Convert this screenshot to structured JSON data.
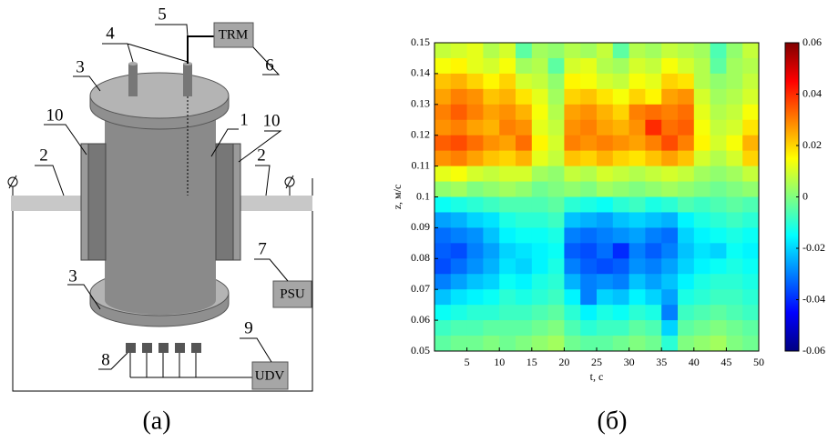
{
  "diagram": {
    "caption": "(a)",
    "numbers": [
      "1",
      "2",
      "3",
      "4",
      "5",
      "6",
      "7",
      "8",
      "9",
      "10"
    ],
    "boxes": [
      "TRM",
      "PSU",
      "UDV"
    ]
  },
  "chart_data": {
    "type": "heatmap",
    "caption": "(б)",
    "xlabel": "t, c",
    "ylabel": "z, м/с",
    "x": [
      1.25,
      3.75,
      6.25,
      8.75,
      11.25,
      13.75,
      16.25,
      18.75,
      21.25,
      23.75,
      26.25,
      28.75,
      31.25,
      33.75,
      36.25,
      38.75,
      41.25,
      43.75,
      46.25,
      48.75
    ],
    "y": [
      0.1475,
      0.1425,
      0.1375,
      0.1325,
      0.1275,
      0.1225,
      0.1175,
      0.1125,
      0.1075,
      0.1025,
      0.0975,
      0.0925,
      0.0875,
      0.0825,
      0.0775,
      0.0725,
      0.0675,
      0.0625,
      0.0575,
      0.0525
    ],
    "z": [
      [
        0.008,
        0.01,
        0.012,
        0.006,
        0.01,
        -0.004,
        0.004,
        0.002,
        0.006,
        0.004,
        0.008,
        -0.004,
        0.006,
        0.004,
        0.008,
        0.006,
        0.004,
        -0.006,
        0.002,
        0.008
      ],
      [
        0.014,
        0.016,
        0.012,
        0.01,
        0.014,
        0.004,
        0.006,
        -0.004,
        0.01,
        0.012,
        0.006,
        0.004,
        0.01,
        0.008,
        0.014,
        0.01,
        0.006,
        -0.004,
        0.004,
        0.006
      ],
      [
        0.022,
        0.024,
        0.02,
        0.016,
        0.02,
        0.01,
        0.008,
        0.002,
        0.016,
        0.014,
        0.01,
        0.008,
        0.014,
        0.012,
        0.02,
        0.018,
        0.006,
        0.002,
        0.004,
        0.008
      ],
      [
        0.026,
        0.03,
        0.028,
        0.022,
        0.024,
        0.018,
        0.012,
        0.004,
        0.02,
        0.022,
        0.018,
        0.014,
        0.02,
        0.016,
        0.026,
        0.028,
        0.01,
        0.004,
        0.006,
        0.01
      ],
      [
        0.03,
        0.034,
        0.03,
        0.026,
        0.028,
        0.024,
        0.014,
        0.006,
        0.026,
        0.028,
        0.024,
        0.02,
        0.03,
        0.032,
        0.03,
        0.032,
        0.012,
        0.006,
        0.008,
        0.014
      ],
      [
        0.028,
        0.03,
        0.026,
        0.024,
        0.03,
        0.028,
        0.012,
        0.008,
        0.028,
        0.03,
        0.026,
        0.024,
        0.028,
        0.04,
        0.032,
        0.034,
        0.014,
        0.008,
        0.01,
        0.018
      ],
      [
        0.034,
        0.036,
        0.032,
        0.028,
        0.026,
        0.032,
        0.016,
        0.01,
        0.03,
        0.028,
        0.03,
        0.028,
        0.026,
        0.03,
        0.036,
        0.03,
        0.016,
        0.01,
        0.014,
        0.024
      ],
      [
        0.028,
        0.03,
        0.026,
        0.022,
        0.02,
        0.024,
        0.012,
        0.008,
        0.022,
        0.02,
        0.024,
        0.02,
        0.018,
        0.022,
        0.026,
        0.022,
        0.01,
        0.006,
        0.01,
        0.02
      ],
      [
        0.012,
        0.014,
        0.01,
        0.008,
        0.01,
        0.01,
        0.004,
        0.002,
        0.008,
        0.006,
        0.01,
        0.008,
        0.006,
        0.008,
        0.01,
        0.008,
        0.004,
        0.002,
        0.004,
        0.008
      ],
      [
        0.002,
        0.004,
        0,
        0.002,
        0.004,
        0.002,
        -0.002,
        0,
        0.002,
        0,
        0.004,
        0.002,
        0,
        0.002,
        0.004,
        0.002,
        0,
        -0.002,
        0,
        0.002
      ],
      [
        -0.014,
        -0.012,
        -0.01,
        -0.008,
        -0.006,
        -0.006,
        -0.006,
        -0.004,
        -0.01,
        -0.012,
        -0.014,
        -0.01,
        -0.008,
        -0.012,
        -0.01,
        -0.006,
        -0.008,
        -0.006,
        -0.004,
        -0.006
      ],
      [
        -0.026,
        -0.024,
        -0.02,
        -0.018,
        -0.012,
        -0.01,
        -0.01,
        -0.008,
        -0.022,
        -0.024,
        -0.026,
        -0.022,
        -0.02,
        -0.022,
        -0.024,
        -0.016,
        -0.012,
        -0.01,
        -0.008,
        -0.01
      ],
      [
        -0.032,
        -0.03,
        -0.028,
        -0.022,
        -0.016,
        -0.014,
        -0.014,
        -0.012,
        -0.03,
        -0.032,
        -0.03,
        -0.028,
        -0.026,
        -0.03,
        -0.032,
        -0.02,
        -0.016,
        -0.014,
        -0.012,
        -0.014
      ],
      [
        -0.034,
        -0.036,
        -0.03,
        -0.026,
        -0.02,
        -0.018,
        -0.016,
        -0.014,
        -0.034,
        -0.036,
        -0.032,
        -0.04,
        -0.03,
        -0.034,
        -0.03,
        -0.022,
        -0.018,
        -0.02,
        -0.014,
        -0.016
      ],
      [
        -0.036,
        -0.032,
        -0.028,
        -0.024,
        -0.018,
        -0.02,
        -0.016,
        -0.012,
        -0.03,
        -0.034,
        -0.036,
        -0.034,
        -0.028,
        -0.03,
        -0.026,
        -0.02,
        -0.016,
        -0.014,
        -0.012,
        -0.014
      ],
      [
        -0.03,
        -0.026,
        -0.022,
        -0.02,
        -0.014,
        -0.016,
        -0.012,
        -0.01,
        -0.024,
        -0.03,
        -0.028,
        -0.03,
        -0.022,
        -0.026,
        -0.022,
        -0.016,
        -0.012,
        -0.01,
        -0.01,
        -0.012
      ],
      [
        -0.022,
        -0.018,
        -0.016,
        -0.014,
        -0.01,
        -0.012,
        -0.01,
        -0.008,
        -0.016,
        -0.03,
        -0.02,
        -0.022,
        -0.016,
        -0.02,
        -0.026,
        -0.012,
        -0.01,
        -0.008,
        -0.008,
        -0.01
      ],
      [
        -0.014,
        -0.012,
        -0.01,
        -0.01,
        -0.008,
        -0.008,
        -0.006,
        -0.004,
        -0.01,
        -0.016,
        -0.012,
        -0.014,
        -0.01,
        -0.012,
        -0.03,
        -0.008,
        -0.006,
        -0.004,
        -0.006,
        -0.008
      ],
      [
        -0.008,
        -0.006,
        -0.006,
        -0.004,
        -0.004,
        -0.004,
        -0.002,
        0,
        -0.006,
        -0.01,
        -0.008,
        -0.008,
        -0.004,
        -0.006,
        -0.02,
        -0.004,
        -0.002,
        0,
        -0.002,
        -0.004
      ],
      [
        -0.004,
        -0.002,
        -0.002,
        0,
        -0.002,
        0,
        0.002,
        0.004,
        -0.002,
        -0.004,
        -0.004,
        -0.002,
        0,
        -0.002,
        -0.01,
        0,
        0.002,
        0.004,
        0,
        -0.002
      ]
    ],
    "xlim": [
      0,
      50
    ],
    "ylim": [
      0.05,
      0.15
    ],
    "xticks": [
      5,
      10,
      15,
      20,
      25,
      30,
      35,
      40,
      45,
      50
    ],
    "yticks": [
      0.05,
      0.06,
      0.07,
      0.08,
      0.09,
      0.1,
      0.11,
      0.12,
      0.13,
      0.14,
      0.15
    ],
    "zlim": [
      -0.06,
      0.06
    ],
    "zticks": [
      -0.06,
      -0.04,
      -0.02,
      0,
      0.02,
      0.04,
      0.06
    ],
    "colormap": "jet"
  }
}
